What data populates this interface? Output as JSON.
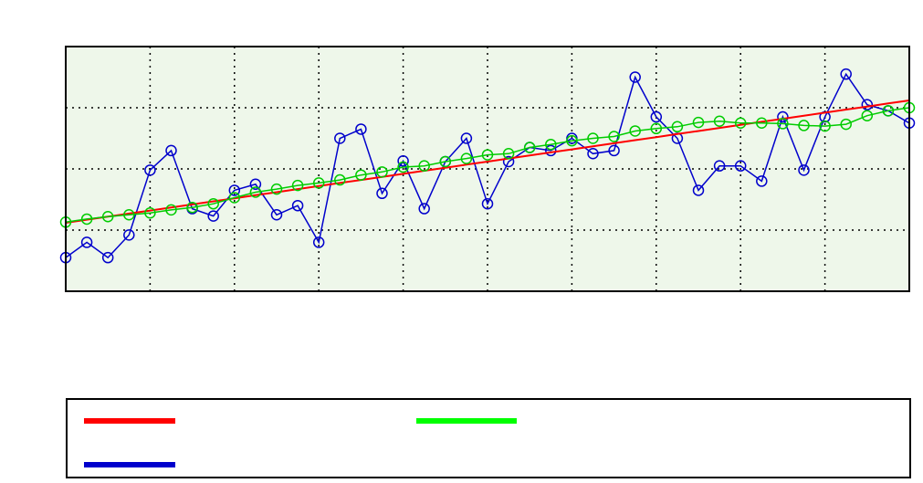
{
  "chart_data": {
    "type": "line",
    "title": "",
    "xlabel": "",
    "ylabel": "",
    "xlim": [
      0,
      40
    ],
    "ylim": [
      0,
      4
    ],
    "grid": true,
    "plot_background": "#eef7ea",
    "x": [
      0,
      1,
      2,
      3,
      4,
      5,
      6,
      7,
      8,
      9,
      10,
      11,
      12,
      13,
      14,
      15,
      16,
      17,
      18,
      19,
      20,
      21,
      22,
      23,
      24,
      25,
      26,
      27,
      28,
      29,
      30,
      31,
      32,
      33,
      34,
      35,
      36,
      37,
      38,
      39,
      40
    ],
    "series": [
      {
        "name": "",
        "color": "#ff0000",
        "marker": "none",
        "values": [
          1.12,
          1.17,
          1.22,
          1.27,
          1.32,
          1.37,
          1.42,
          1.47,
          1.52,
          1.57,
          1.62,
          1.67,
          1.72,
          1.77,
          1.82,
          1.87,
          1.92,
          1.97,
          2.02,
          2.07,
          2.12,
          2.17,
          2.22,
          2.27,
          2.32,
          2.37,
          2.42,
          2.47,
          2.52,
          2.57,
          2.62,
          2.67,
          2.72,
          2.77,
          2.82,
          2.87,
          2.92,
          2.97,
          3.02,
          3.07,
          3.12
        ]
      },
      {
        "name": "",
        "color": "#00cc00",
        "marker": "circle",
        "values": [
          1.13,
          1.18,
          1.22,
          1.25,
          1.28,
          1.33,
          1.37,
          1.43,
          1.53,
          1.62,
          1.67,
          1.73,
          1.77,
          1.82,
          1.9,
          1.95,
          2.03,
          2.05,
          2.12,
          2.17,
          2.23,
          2.25,
          2.35,
          2.4,
          2.46,
          2.5,
          2.53,
          2.62,
          2.66,
          2.69,
          2.76,
          2.78,
          2.75,
          2.75,
          2.74,
          2.71,
          2.7,
          2.73,
          2.87,
          2.95,
          3.0
        ]
      },
      {
        "name": "",
        "color": "#0000cc",
        "marker": "circle",
        "values": [
          0.55,
          0.8,
          0.55,
          0.92,
          1.98,
          2.3,
          1.35,
          1.23,
          1.65,
          1.75,
          1.25,
          1.4,
          0.8,
          2.5,
          2.65,
          1.6,
          2.13,
          1.35,
          2.12,
          2.5,
          1.43,
          2.12,
          2.35,
          2.3,
          2.5,
          2.25,
          2.3,
          3.5,
          2.85,
          2.5,
          1.65,
          2.05,
          2.05,
          1.8,
          2.85,
          1.98,
          2.85,
          3.55,
          3.05,
          2.95,
          2.75
        ]
      }
    ]
  }
}
